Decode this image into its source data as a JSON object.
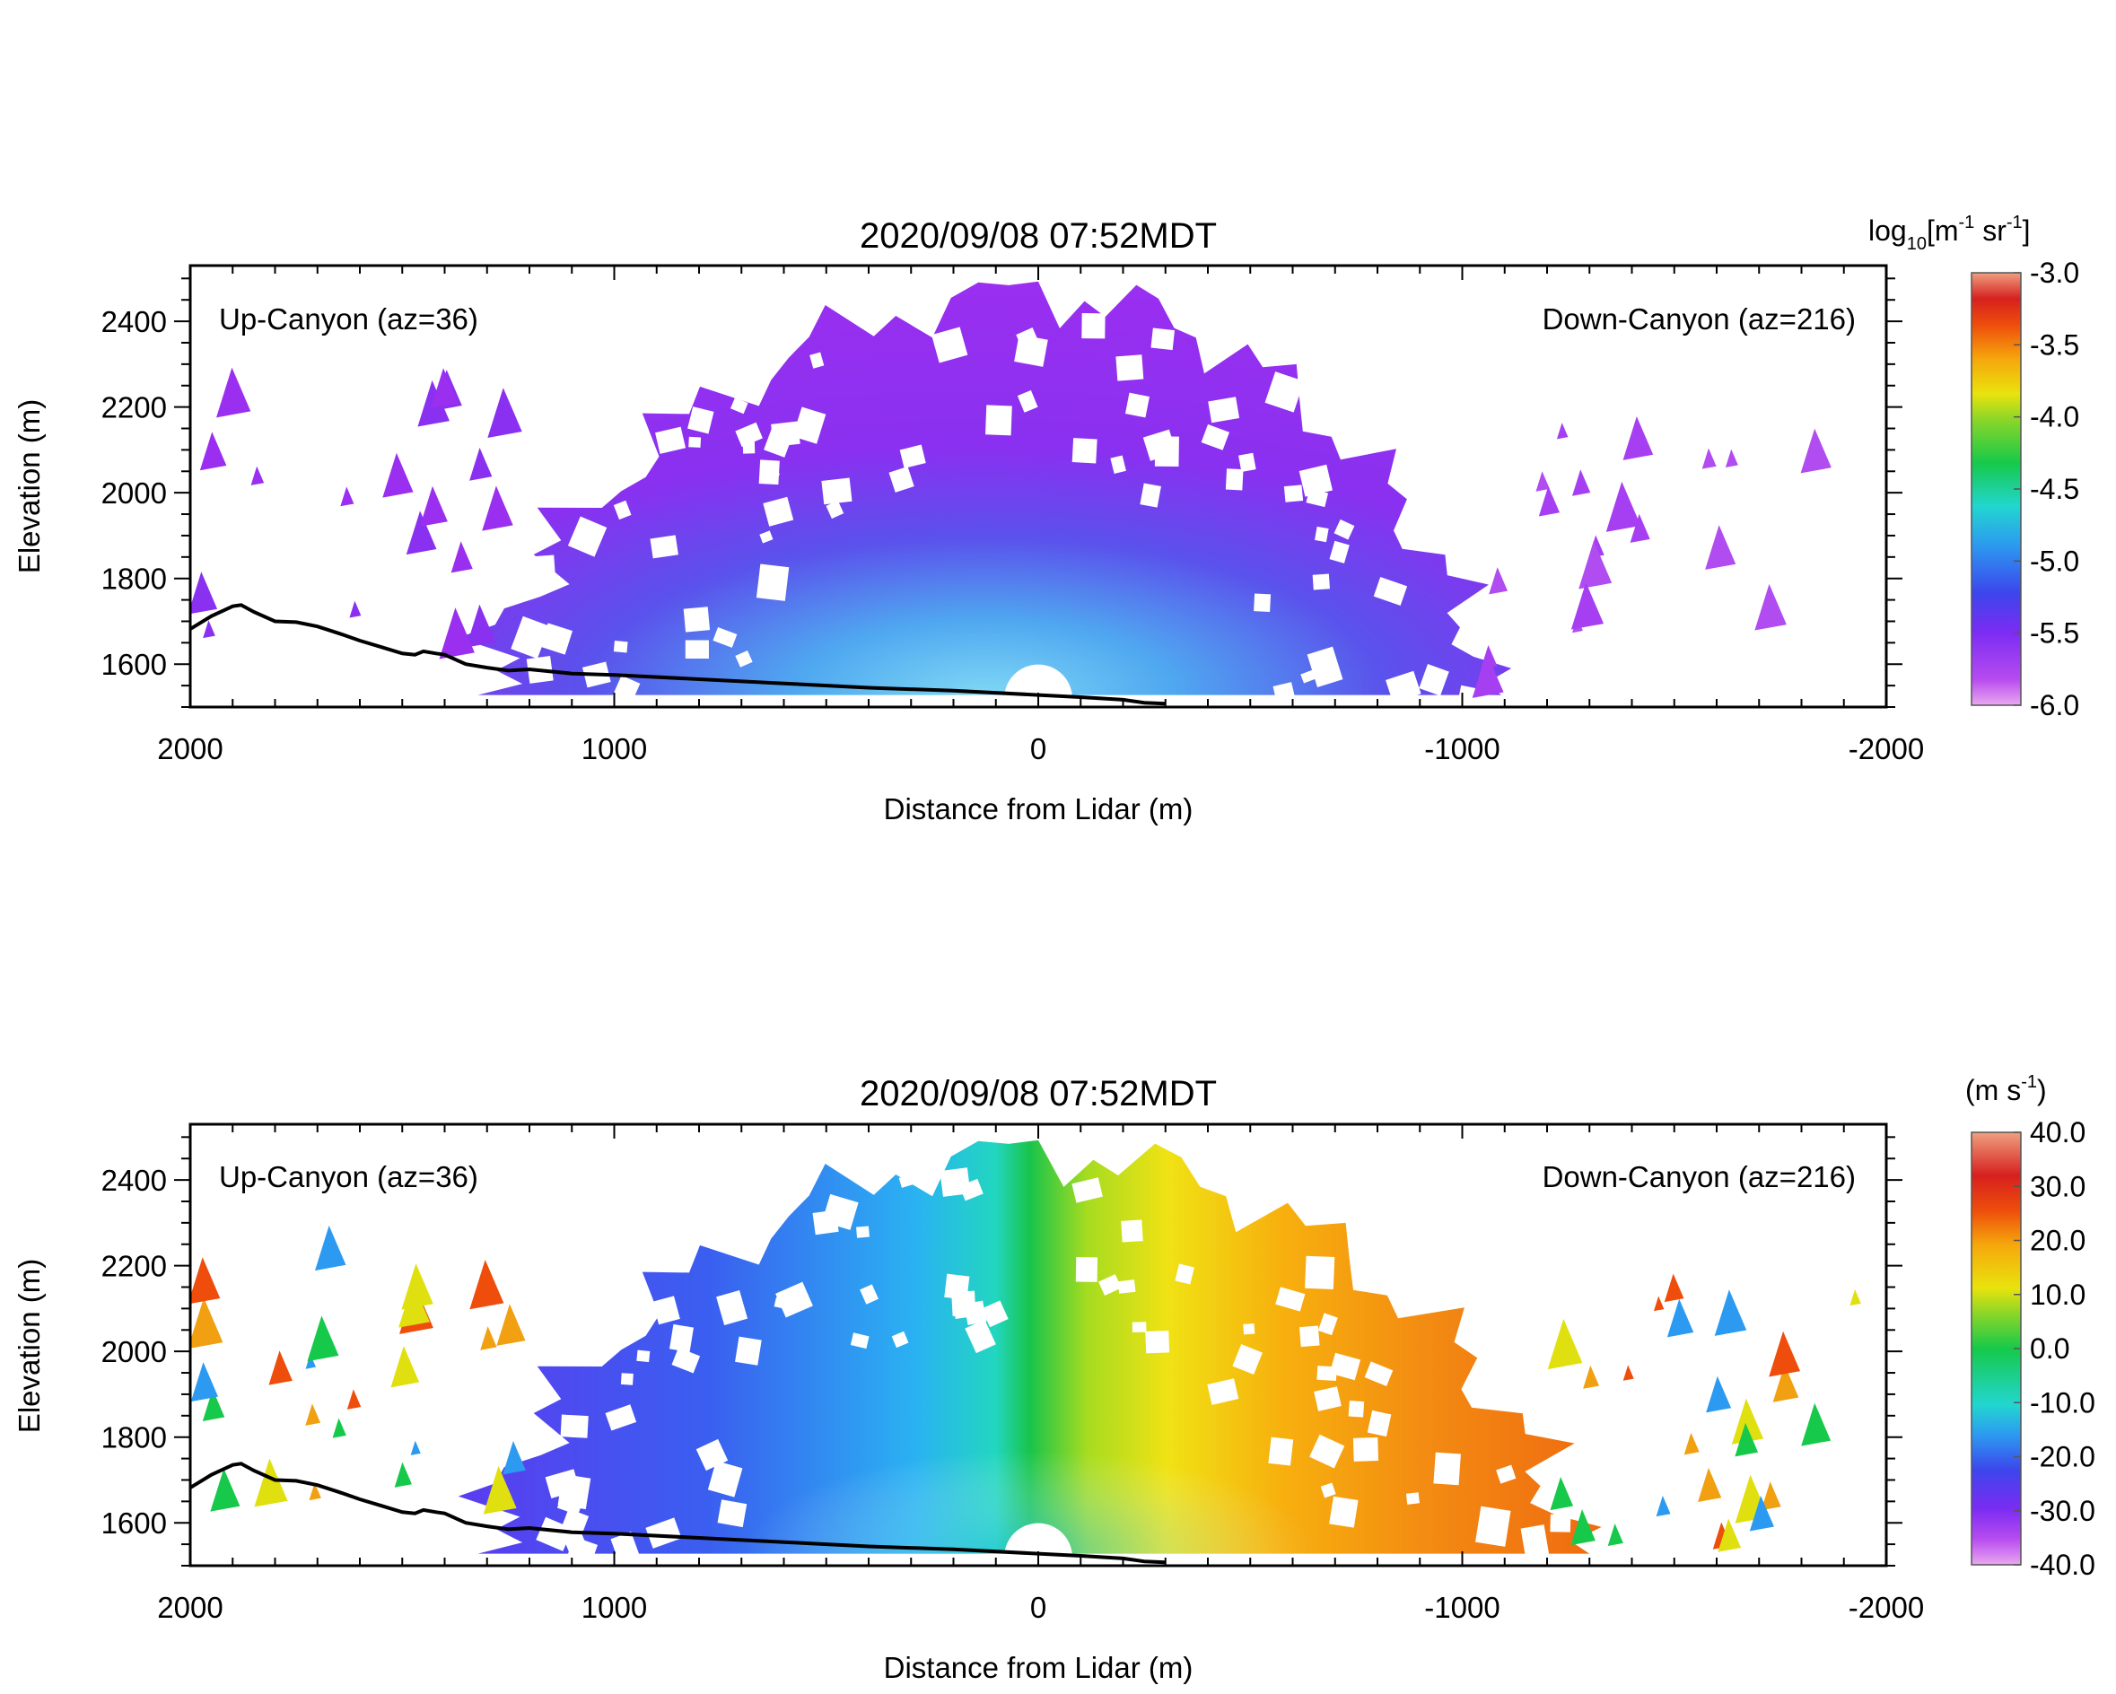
{
  "chart_data": [
    {
      "type": "heatmap",
      "title": "2020/09/08 07:52MDT",
      "xlabel": "Distance from Lidar (m)",
      "ylabel": "Elevation (m)",
      "xlim": [
        2000,
        -2000
      ],
      "ylim": [
        1500,
        2530
      ],
      "x_ticks": [
        "2000",
        "1000",
        "0",
        "-1000",
        "-2000"
      ],
      "x_tick_values": [
        2000,
        1000,
        0,
        -1000,
        -2000
      ],
      "y_ticks": [
        "1600",
        "1800",
        "2000",
        "2200",
        "2400"
      ],
      "y_tick_values": [
        1600,
        1800,
        2000,
        2200,
        2400
      ],
      "annotations": [
        "Up-Canyon (az=36)",
        "Down-Canyon (az=216)"
      ],
      "colorbar": {
        "label_main": "log",
        "label_sub": "10",
        "label_rest": "[m",
        "label_sup1": "-1",
        "label_mid": " sr",
        "label_sup2": "-1",
        "label_end": "]",
        "ticks": [
          "-3.0",
          "-3.5",
          "-4.0",
          "-4.5",
          "-5.0",
          "-5.5",
          "-6.0"
        ],
        "range": [
          -6.0,
          -3.0
        ]
      },
      "field": {
        "variable": "log10 backscatter",
        "near_lidar": -5.0,
        "far_range": -6.0,
        "max_range_m": 1050,
        "sparse_echoes_right": true
      },
      "terrain_profile": {
        "x": [
          2000,
          1950,
          1900,
          1880,
          1850,
          1800,
          1750,
          1700,
          1650,
          1600,
          1550,
          1500,
          1470,
          1450,
          1420,
          1400,
          1350,
          1300,
          1250,
          1200,
          1100,
          1000,
          800,
          600,
          400,
          200,
          0,
          -100,
          -200,
          -250,
          -300
        ],
        "y": [
          1682,
          1712,
          1735,
          1738,
          1722,
          1700,
          1698,
          1688,
          1672,
          1655,
          1640,
          1625,
          1622,
          1630,
          1625,
          1622,
          1600,
          1592,
          1585,
          1588,
          1578,
          1575,
          1565,
          1555,
          1545,
          1538,
          1528,
          1523,
          1517,
          1510,
          1508
        ]
      }
    },
    {
      "type": "heatmap",
      "title": "2020/09/08 07:52MDT",
      "xlabel": "Distance from Lidar (m)",
      "ylabel": "Elevation (m)",
      "xlim": [
        2000,
        -2000
      ],
      "ylim": [
        1500,
        2530
      ],
      "x_ticks": [
        "2000",
        "1000",
        "0",
        "-1000",
        "-2000"
      ],
      "x_tick_values": [
        2000,
        1000,
        0,
        -1000,
        -2000
      ],
      "y_ticks": [
        "1600",
        "1800",
        "2000",
        "2200",
        "2400"
      ],
      "y_tick_values": [
        1600,
        1800,
        2000,
        2200,
        2400
      ],
      "annotations": [
        "Up-Canyon (az=36)",
        "Down-Canyon (az=216)"
      ],
      "colorbar": {
        "label_main": "(m s",
        "label_sup1": "-1",
        "label_end": ")",
        "ticks": [
          "40.0",
          "30.0",
          "20.0",
          "10.0",
          "0.0",
          "-10.0",
          "-20.0",
          "-30.0",
          "-40.0"
        ],
        "range": [
          -40.0,
          40.0
        ]
      },
      "field": {
        "variable": "radial velocity",
        "up_canyon_far": -30,
        "up_canyon_near": -15,
        "at_lidar": 0,
        "down_canyon_near": 15,
        "down_canyon_far": 25,
        "max_range_m": 1250
      },
      "terrain_profile": {
        "x": [
          2000,
          1950,
          1900,
          1880,
          1850,
          1800,
          1750,
          1700,
          1650,
          1600,
          1550,
          1500,
          1470,
          1450,
          1420,
          1400,
          1350,
          1300,
          1250,
          1200,
          1100,
          1000,
          800,
          600,
          400,
          200,
          0,
          -100,
          -200,
          -250,
          -300
        ],
        "y": [
          1682,
          1712,
          1735,
          1738,
          1722,
          1700,
          1698,
          1688,
          1672,
          1655,
          1640,
          1625,
          1622,
          1630,
          1625,
          1622,
          1600,
          1592,
          1585,
          1588,
          1578,
          1575,
          1565,
          1555,
          1545,
          1538,
          1528,
          1523,
          1517,
          1510,
          1508
        ]
      }
    }
  ]
}
